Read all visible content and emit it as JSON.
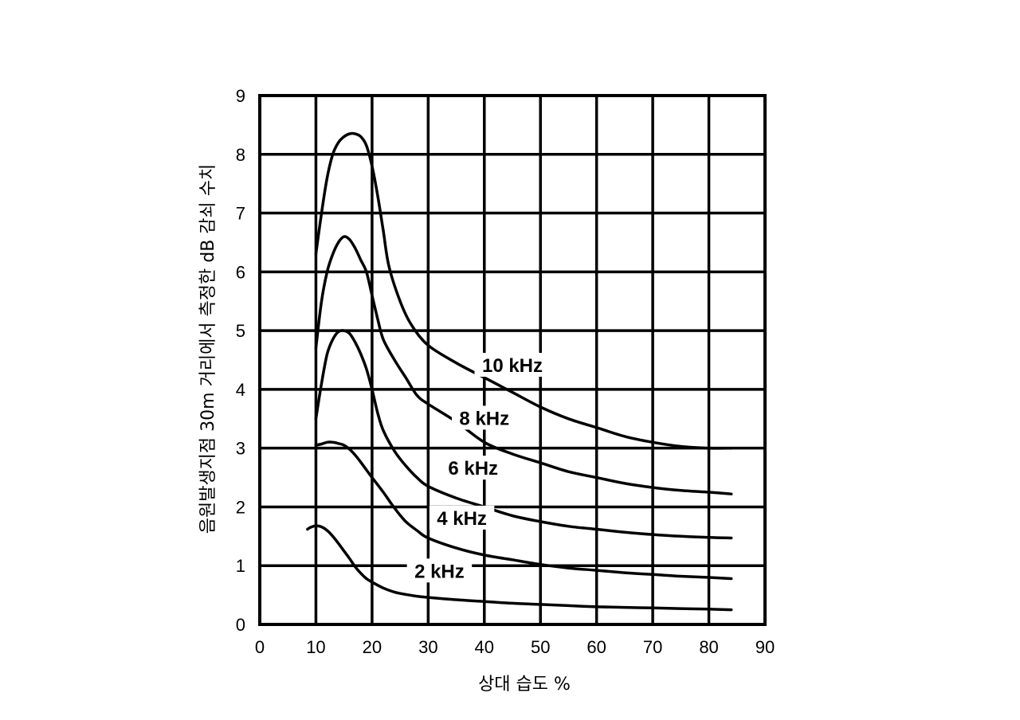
{
  "chart_data": {
    "type": "line",
    "title": "",
    "xlabel": "상대 습도 %",
    "ylabel": "음원발생지점 30m 거리에서 측정한 dB 감쇠 수치",
    "xlim": [
      0,
      90
    ],
    "ylim": [
      0,
      9
    ],
    "x_ticks": [
      "0",
      "10",
      "20",
      "30",
      "40",
      "50",
      "60",
      "70",
      "80",
      "90"
    ],
    "y_ticks": [
      "0",
      "1",
      "2",
      "3",
      "4",
      "5",
      "6",
      "7",
      "8",
      "9"
    ],
    "grid": true,
    "series": [
      {
        "name": "10 kHz",
        "points": [
          [
            10,
            6.3
          ],
          [
            11,
            7.0
          ],
          [
            12,
            7.6
          ],
          [
            13,
            8.0
          ],
          [
            14,
            8.2
          ],
          [
            15,
            8.3
          ],
          [
            16,
            8.35
          ],
          [
            17,
            8.35
          ],
          [
            18,
            8.3
          ],
          [
            19,
            8.15
          ],
          [
            20,
            7.8
          ],
          [
            21,
            7.3
          ],
          [
            22,
            6.7
          ],
          [
            23,
            6.1
          ],
          [
            25,
            5.5
          ],
          [
            27,
            5.1
          ],
          [
            30,
            4.75
          ],
          [
            35,
            4.45
          ],
          [
            40,
            4.2
          ],
          [
            45,
            3.95
          ],
          [
            50,
            3.7
          ],
          [
            55,
            3.5
          ],
          [
            60,
            3.35
          ],
          [
            65,
            3.2
          ],
          [
            70,
            3.1
          ],
          [
            75,
            3.03
          ],
          [
            80,
            3.0
          ],
          [
            84,
            3.0
          ]
        ]
      },
      {
        "name": "8 kHz",
        "points": [
          [
            10,
            4.7
          ],
          [
            11,
            5.5
          ],
          [
            12,
            6.0
          ],
          [
            13,
            6.3
          ],
          [
            14,
            6.5
          ],
          [
            15,
            6.6
          ],
          [
            16,
            6.55
          ],
          [
            17,
            6.4
          ],
          [
            18,
            6.2
          ],
          [
            19,
            6.0
          ],
          [
            20,
            5.6
          ],
          [
            21,
            5.2
          ],
          [
            22,
            4.85
          ],
          [
            24,
            4.5
          ],
          [
            26,
            4.2
          ],
          [
            28,
            3.9
          ],
          [
            30,
            3.75
          ],
          [
            35,
            3.45
          ],
          [
            40,
            3.1
          ],
          [
            45,
            2.9
          ],
          [
            50,
            2.75
          ],
          [
            55,
            2.6
          ],
          [
            60,
            2.5
          ],
          [
            65,
            2.4
          ],
          [
            70,
            2.33
          ],
          [
            75,
            2.28
          ],
          [
            80,
            2.25
          ],
          [
            84,
            2.22
          ]
        ]
      },
      {
        "name": "6 kHz",
        "points": [
          [
            10,
            3.5
          ],
          [
            11,
            4.1
          ],
          [
            12,
            4.6
          ],
          [
            13,
            4.85
          ],
          [
            14,
            4.98
          ],
          [
            15,
            5.0
          ],
          [
            16,
            4.95
          ],
          [
            17,
            4.8
          ],
          [
            18,
            4.6
          ],
          [
            19,
            4.35
          ],
          [
            20,
            4.0
          ],
          [
            21,
            3.6
          ],
          [
            22,
            3.3
          ],
          [
            24,
            2.95
          ],
          [
            26,
            2.7
          ],
          [
            28,
            2.5
          ],
          [
            30,
            2.35
          ],
          [
            35,
            2.15
          ],
          [
            40,
            2.0
          ],
          [
            45,
            1.85
          ],
          [
            50,
            1.75
          ],
          [
            55,
            1.67
          ],
          [
            60,
            1.62
          ],
          [
            65,
            1.57
          ],
          [
            70,
            1.53
          ],
          [
            75,
            1.5
          ],
          [
            80,
            1.48
          ],
          [
            84,
            1.47
          ]
        ]
      },
      {
        "name": "4 kHz",
        "points": [
          [
            10,
            3.05
          ],
          [
            11,
            3.07
          ],
          [
            12,
            3.1
          ],
          [
            13,
            3.1
          ],
          [
            14,
            3.08
          ],
          [
            15,
            3.05
          ],
          [
            16,
            2.98
          ],
          [
            17,
            2.88
          ],
          [
            18,
            2.76
          ],
          [
            19,
            2.63
          ],
          [
            20,
            2.5
          ],
          [
            22,
            2.25
          ],
          [
            24,
            1.98
          ],
          [
            26,
            1.75
          ],
          [
            28,
            1.6
          ],
          [
            30,
            1.47
          ],
          [
            35,
            1.3
          ],
          [
            40,
            1.18
          ],
          [
            45,
            1.1
          ],
          [
            50,
            1.02
          ],
          [
            55,
            0.96
          ],
          [
            60,
            0.92
          ],
          [
            65,
            0.88
          ],
          [
            70,
            0.85
          ],
          [
            75,
            0.82
          ],
          [
            80,
            0.8
          ],
          [
            84,
            0.78
          ]
        ]
      },
      {
        "name": "2 kHz",
        "points": [
          [
            8.5,
            1.62
          ],
          [
            9,
            1.65
          ],
          [
            10,
            1.68
          ],
          [
            11,
            1.66
          ],
          [
            12,
            1.6
          ],
          [
            13,
            1.5
          ],
          [
            14,
            1.38
          ],
          [
            15,
            1.25
          ],
          [
            16,
            1.12
          ],
          [
            17,
            0.98
          ],
          [
            18,
            0.87
          ],
          [
            19,
            0.78
          ],
          [
            20,
            0.72
          ],
          [
            22,
            0.62
          ],
          [
            24,
            0.55
          ],
          [
            26,
            0.51
          ],
          [
            28,
            0.48
          ],
          [
            30,
            0.46
          ],
          [
            35,
            0.42
          ],
          [
            40,
            0.39
          ],
          [
            45,
            0.36
          ],
          [
            50,
            0.34
          ],
          [
            55,
            0.32
          ],
          [
            60,
            0.3
          ],
          [
            65,
            0.29
          ],
          [
            70,
            0.28
          ],
          [
            75,
            0.27
          ],
          [
            80,
            0.26
          ],
          [
            84,
            0.25
          ]
        ]
      }
    ]
  }
}
